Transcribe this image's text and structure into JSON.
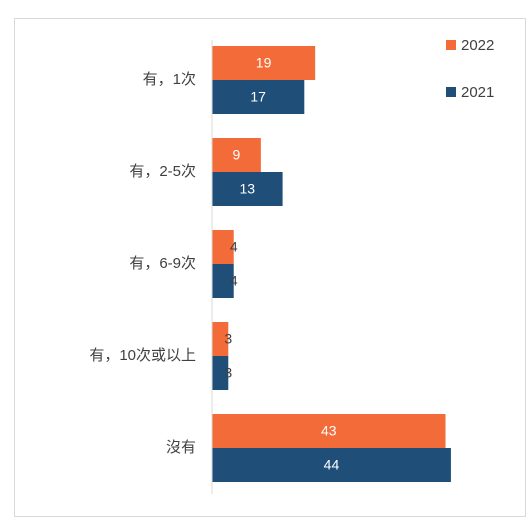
{
  "chart_data": {
    "type": "hbar",
    "categories": [
      "有，1次",
      "有，2-5次",
      "有，6-9次",
      "有，10次或以上",
      "沒有"
    ],
    "series": [
      {
        "name": "2022",
        "color": "#f26b38",
        "values": [
          19,
          9,
          4,
          3,
          43
        ]
      },
      {
        "name": "2021",
        "color": "#1f4e79",
        "values": [
          17,
          13,
          4,
          3,
          44
        ]
      }
    ],
    "xlim": [
      0,
      50
    ],
    "legend": "top-right"
  }
}
